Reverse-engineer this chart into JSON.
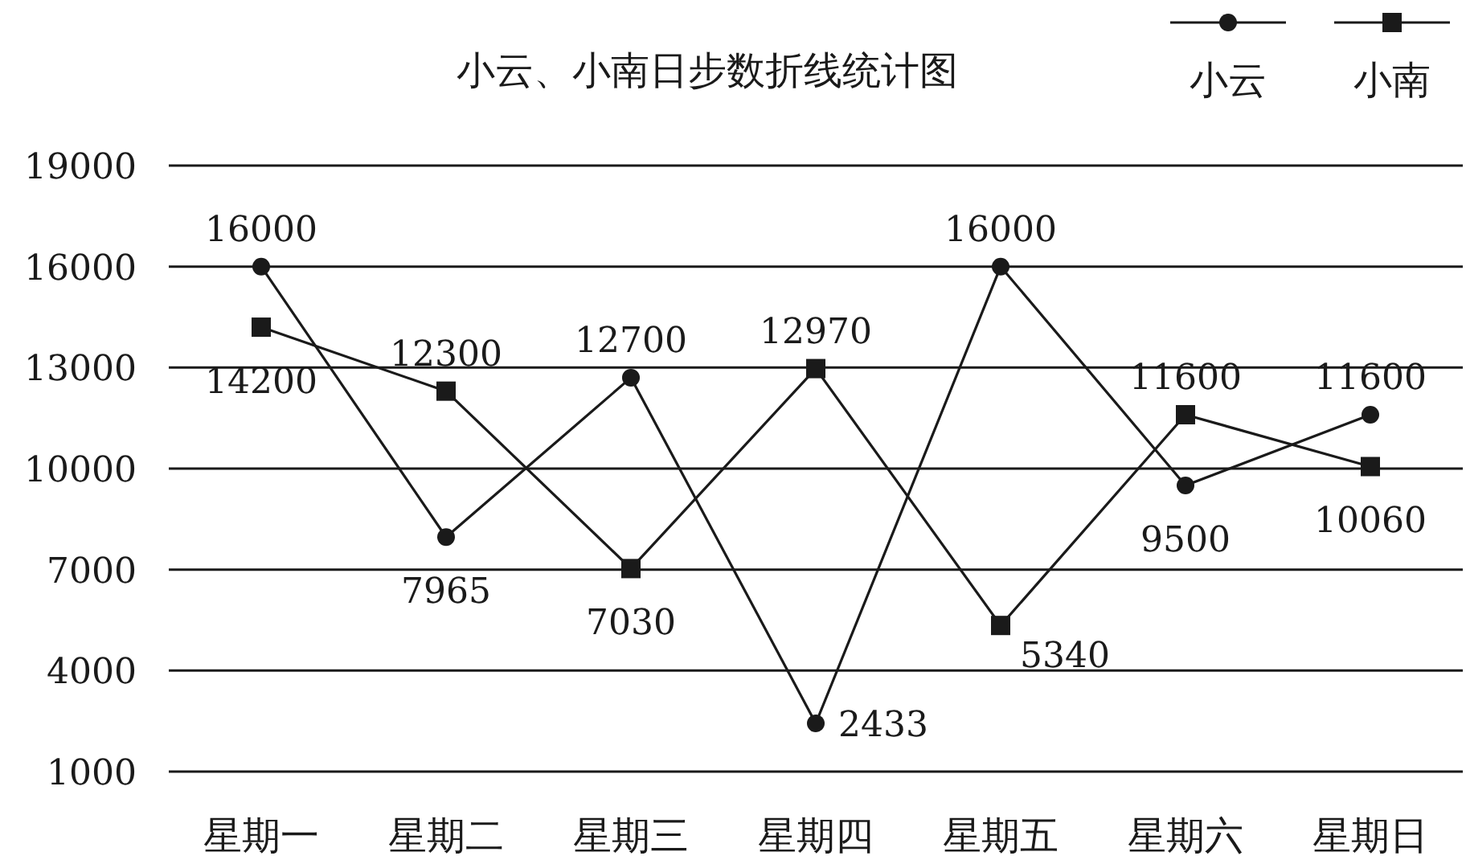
{
  "chart_data": {
    "type": "line",
    "title": "小云、小南日步数折线统计图",
    "categories": [
      "星期一",
      "星期二",
      "星期三",
      "星期四",
      "星期五",
      "星期六",
      "星期日"
    ],
    "series": [
      {
        "name": "小云",
        "color": "#1a1a1a",
        "marker": "circle",
        "values": [
          16000,
          7965,
          12700,
          2433,
          16000,
          9500,
          11600
        ]
      },
      {
        "name": "小南",
        "color": "#1a1a1a",
        "marker": "square",
        "values": [
          14200,
          12300,
          7030,
          12970,
          5340,
          11600,
          10060
        ]
      }
    ],
    "ylim": [
      1000,
      19000
    ],
    "yticks": [
      1000,
      4000,
      7000,
      10000,
      13000,
      16000,
      19000
    ],
    "grid": "y",
    "legend": "top right",
    "data_labels": true,
    "line_style": "solid"
  }
}
